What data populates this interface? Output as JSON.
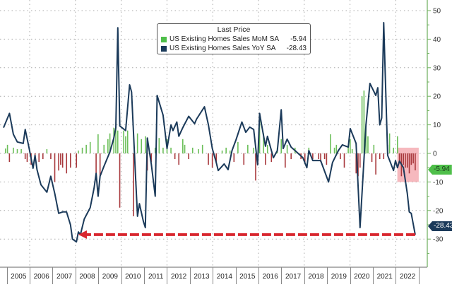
{
  "chart_data": {
    "type": "bar+line",
    "legend": {
      "title": "Last Price",
      "placement": "top-center",
      "entries": [
        {
          "name": "US Existing Homes Sales MoM SA",
          "last": "-5.94",
          "color": "#5cb85c"
        },
        {
          "name": "US Existing Homes Sales YoY SA",
          "last": "-28.43",
          "color": "#1b3a5a"
        }
      ]
    },
    "y_axis": {
      "side": "right",
      "range": [
        -40,
        52
      ],
      "ticks": [
        "50",
        "40",
        "30",
        "20",
        "10",
        "0",
        "-10",
        "-20",
        "-30"
      ],
      "tick_values": [
        50,
        40,
        30,
        20,
        10,
        0,
        -10,
        -20,
        -30
      ]
    },
    "x_axis": {
      "ticks": [
        "2005",
        "2006",
        "2007",
        "2008",
        "2009",
        "2010",
        "2011",
        "2012",
        "2013",
        "2014",
        "2015",
        "2016",
        "2017",
        "2018",
        "2019",
        "2020",
        "2021",
        "2022"
      ]
    },
    "grid": true,
    "colors": {
      "positive_bar": "#6cbf5a",
      "negative_bar": "#a8383c",
      "line": "#1b3a5a",
      "highlight": "#f08a92",
      "arrow": "#d8262e",
      "axis": "#6cae5a"
    },
    "badges": {
      "mom": "-5.94",
      "yoy": "-28.43"
    },
    "annotations": {
      "highlight_box": {
        "from": "2021-10",
        "to": "2022-06",
        "y_range": [
          -10,
          2
        ]
      },
      "dashed_arrow": {
        "from": "2022-06",
        "to": "2008-03",
        "value": -28.43
      }
    },
    "series": [
      {
        "name": "US Existing Homes Sales MoM SA",
        "type": "bar",
        "points": [
          [
            "2005-02",
            1.7
          ],
          [
            "2005-03",
            3
          ],
          [
            "2005-04",
            -3
          ],
          [
            "2005-06",
            2
          ],
          [
            "2005-08",
            1.5
          ],
          [
            "2005-10",
            1.5
          ],
          [
            "2005-12",
            -2
          ],
          [
            "2006-01",
            -3
          ],
          [
            "2006-03",
            -4
          ],
          [
            "2006-05",
            -2
          ],
          [
            "2006-07",
            -3
          ],
          [
            "2006-09",
            -2
          ],
          [
            "2006-11",
            1.5
          ],
          [
            "2007-01",
            -2
          ],
          [
            "2007-03",
            -10
          ],
          [
            "2007-05",
            -6
          ],
          [
            "2007-06",
            -4
          ],
          [
            "2007-07",
            -5
          ],
          [
            "2007-09",
            -7
          ],
          [
            "2007-11",
            -5
          ],
          [
            "2008-02",
            -5
          ],
          [
            "2008-03",
            1
          ],
          [
            "2008-05",
            2
          ],
          [
            "2008-07",
            3
          ],
          [
            "2008-09",
            4
          ],
          [
            "2008-12",
            -7
          ],
          [
            "2009-01",
            6.7
          ],
          [
            "2009-02",
            -8
          ],
          [
            "2009-04",
            3
          ],
          [
            "2009-06",
            5
          ],
          [
            "2009-07",
            7
          ],
          [
            "2009-09",
            9
          ],
          [
            "2009-10",
            9
          ],
          [
            "2009-11",
            8
          ],
          [
            "2009-12",
            -19
          ],
          [
            "2010-02",
            8
          ],
          [
            "2010-03",
            6
          ],
          [
            "2010-04",
            8
          ],
          [
            "2010-07",
            -22
          ],
          [
            "2010-09",
            7
          ],
          [
            "2010-11",
            5
          ],
          [
            "2011-01",
            6
          ],
          [
            "2011-02",
            -6
          ],
          [
            "2011-04",
            -3
          ],
          [
            "2011-06",
            2
          ],
          [
            "2011-08",
            5.4
          ],
          [
            "2011-10",
            2
          ],
          [
            "2011-12",
            5
          ],
          [
            "2012-02",
            2
          ],
          [
            "2012-04",
            -2
          ],
          [
            "2012-06",
            -4
          ],
          [
            "2012-08",
            5
          ],
          [
            "2012-09",
            3
          ],
          [
            "2012-11",
            -2
          ],
          [
            "2013-01",
            2
          ],
          [
            "2013-04",
            1.5
          ],
          [
            "2013-06",
            3
          ],
          [
            "2013-09",
            -4
          ],
          [
            "2013-11",
            -5
          ],
          [
            "2014-01",
            -3
          ],
          [
            "2014-04",
            1
          ],
          [
            "2014-06",
            2
          ],
          [
            "2014-08",
            1
          ],
          [
            "2014-10",
            -3
          ],
          [
            "2014-12",
            4
          ],
          [
            "2015-03",
            -4
          ],
          [
            "2015-05",
            3
          ],
          [
            "2015-08",
            2
          ],
          [
            "2015-09",
            -9.5
          ],
          [
            "2015-11",
            14
          ],
          [
            "2016-01",
            7
          ],
          [
            "2016-02",
            -4
          ],
          [
            "2016-03",
            3
          ],
          [
            "2016-05",
            -3
          ],
          [
            "2016-08",
            2
          ],
          [
            "2016-10",
            5
          ],
          [
            "2016-12",
            -5
          ],
          [
            "2017-01",
            3
          ],
          [
            "2017-03",
            -2
          ],
          [
            "2017-05",
            2
          ],
          [
            "2017-08",
            -2
          ],
          [
            "2017-10",
            -3
          ],
          [
            "2017-12",
            2
          ],
          [
            "2018-02",
            -2
          ],
          [
            "2018-05",
            -2
          ],
          [
            "2018-06",
            -3
          ],
          [
            "2018-08",
            -2
          ],
          [
            "2018-09",
            -4
          ],
          [
            "2018-11",
            6.7
          ],
          [
            "2019-01",
            2
          ],
          [
            "2019-02",
            3
          ],
          [
            "2019-04",
            -2
          ],
          [
            "2019-06",
            -5
          ],
          [
            "2019-08",
            2
          ],
          [
            "2019-09",
            5
          ],
          [
            "2019-10",
            1.5
          ],
          [
            "2019-12",
            -7
          ],
          [
            "2020-01",
            -8
          ],
          [
            "2020-02",
            -5
          ],
          [
            "2020-03",
            20
          ],
          [
            "2020-04",
            22
          ],
          [
            "2020-05",
            10
          ],
          [
            "2020-06",
            6
          ],
          [
            "2020-08",
            -3
          ],
          [
            "2020-09",
            3
          ],
          [
            "2020-10",
            -7.4
          ],
          [
            "2020-12",
            -2
          ],
          [
            "2021-02",
            -2
          ],
          [
            "2021-04",
            3
          ],
          [
            "2021-05",
            7
          ],
          [
            "2021-07",
            2
          ],
          [
            "2021-09",
            6
          ],
          [
            "2021-10",
            -3
          ],
          [
            "2021-11",
            -8
          ],
          [
            "2021-12",
            -4
          ],
          [
            "2022-01",
            -5
          ],
          [
            "2022-02",
            -5
          ],
          [
            "2022-03",
            -7
          ],
          [
            "2022-04",
            -4
          ],
          [
            "2022-05",
            -3.5
          ],
          [
            "2022-06",
            -5.94
          ]
        ]
      },
      {
        "name": "US Existing Homes Sales YoY SA",
        "type": "line",
        "points": [
          [
            "2005-01",
            9
          ],
          [
            "2005-04",
            14
          ],
          [
            "2005-06",
            6.7
          ],
          [
            "2005-08",
            4
          ],
          [
            "2005-11",
            3.5
          ],
          [
            "2005-12",
            8.4
          ],
          [
            "2006-02",
            1.7
          ],
          [
            "2006-04",
            -5.2
          ],
          [
            "2006-05",
            -0.7
          ],
          [
            "2006-06",
            -5.7
          ],
          [
            "2006-08",
            -11
          ],
          [
            "2006-11",
            -13.6
          ],
          [
            "2007-01",
            -8
          ],
          [
            "2007-03",
            -14
          ],
          [
            "2007-05",
            -21
          ],
          [
            "2007-07",
            -20.5
          ],
          [
            "2007-09",
            -20.5
          ],
          [
            "2007-11",
            -25
          ],
          [
            "2007-12",
            -30
          ],
          [
            "2008-02",
            -31
          ],
          [
            "2008-03",
            -27.5
          ],
          [
            "2008-04",
            -28.5
          ],
          [
            "2008-06",
            -23
          ],
          [
            "2008-09",
            -19
          ],
          [
            "2008-11",
            -12
          ],
          [
            "2008-12",
            -7
          ],
          [
            "2009-01",
            -15
          ],
          [
            "2009-02",
            -8
          ],
          [
            "2009-04",
            -4.5
          ],
          [
            "2009-07",
            0.5
          ],
          [
            "2009-09",
            5.4
          ],
          [
            "2009-10",
            9
          ],
          [
            "2009-11",
            44
          ],
          [
            "2009-12",
            9.6
          ],
          [
            "2010-03",
            8
          ],
          [
            "2010-05",
            24
          ],
          [
            "2010-06",
            21.5
          ],
          [
            "2010-08",
            -8
          ],
          [
            "2010-09",
            -22
          ],
          [
            "2010-10",
            -17.6
          ],
          [
            "2010-12",
            -23.8
          ],
          [
            "2011-01",
            -26
          ],
          [
            "2011-02",
            5.4
          ],
          [
            "2011-04",
            -3.7
          ],
          [
            "2011-06",
            -15
          ],
          [
            "2011-07",
            20.3
          ],
          [
            "2011-10",
            13.4
          ],
          [
            "2011-12",
            1.7
          ],
          [
            "2012-02",
            10
          ],
          [
            "2012-03",
            8
          ],
          [
            "2012-05",
            11
          ],
          [
            "2012-06",
            6
          ],
          [
            "2012-08",
            9
          ],
          [
            "2012-11",
            13
          ],
          [
            "2013-02",
            10.4
          ],
          [
            "2013-03",
            12
          ],
          [
            "2013-07",
            16.3
          ],
          [
            "2013-09",
            10
          ],
          [
            "2013-11",
            1.7
          ],
          [
            "2014-01",
            -3.2
          ],
          [
            "2014-02",
            -6
          ],
          [
            "2014-05",
            -3.7
          ],
          [
            "2014-07",
            -5.7
          ],
          [
            "2014-09",
            1
          ],
          [
            "2014-11",
            4.7
          ],
          [
            "2015-02",
            11
          ],
          [
            "2015-04",
            7.4
          ],
          [
            "2015-06",
            9.2
          ],
          [
            "2015-08",
            8.4
          ],
          [
            "2015-10",
            -4
          ],
          [
            "2015-11",
            14
          ],
          [
            "2015-12",
            10
          ],
          [
            "2016-02",
            2.5
          ],
          [
            "2016-03",
            6
          ],
          [
            "2016-06",
            -1.5
          ],
          [
            "2016-08",
            1
          ],
          [
            "2016-10",
            15.3
          ],
          [
            "2016-11",
            1.7
          ],
          [
            "2017-01",
            5
          ],
          [
            "2017-03",
            2.2
          ],
          [
            "2017-05",
            1
          ],
          [
            "2017-09",
            -1.5
          ],
          [
            "2017-11",
            -5
          ],
          [
            "2017-12",
            1
          ],
          [
            "2018-02",
            -2.5
          ],
          [
            "2018-06",
            -2.5
          ],
          [
            "2018-10",
            -10
          ],
          [
            "2018-12",
            -3.2
          ],
          [
            "2019-03",
            1
          ],
          [
            "2019-05",
            3
          ],
          [
            "2019-08",
            2.2
          ],
          [
            "2019-09",
            8.7
          ],
          [
            "2019-12",
            3.5
          ],
          [
            "2020-02",
            -26
          ],
          [
            "2020-05",
            10
          ],
          [
            "2020-07",
            24.5
          ],
          [
            "2020-10",
            20.3
          ],
          [
            "2020-11",
            23
          ],
          [
            "2020-12",
            10
          ],
          [
            "2021-01",
            12.4
          ],
          [
            "2021-02",
            45.8
          ],
          [
            "2021-04",
            -0.7
          ],
          [
            "2021-07",
            -6
          ],
          [
            "2021-08",
            -2.5
          ],
          [
            "2021-09",
            -5
          ],
          [
            "2021-10",
            -2.7
          ],
          [
            "2021-12",
            -5
          ],
          [
            "2022-02",
            -14
          ],
          [
            "2022-03",
            -20.5
          ],
          [
            "2022-04",
            -21
          ],
          [
            "2022-06",
            -28.43
          ]
        ]
      }
    ]
  }
}
